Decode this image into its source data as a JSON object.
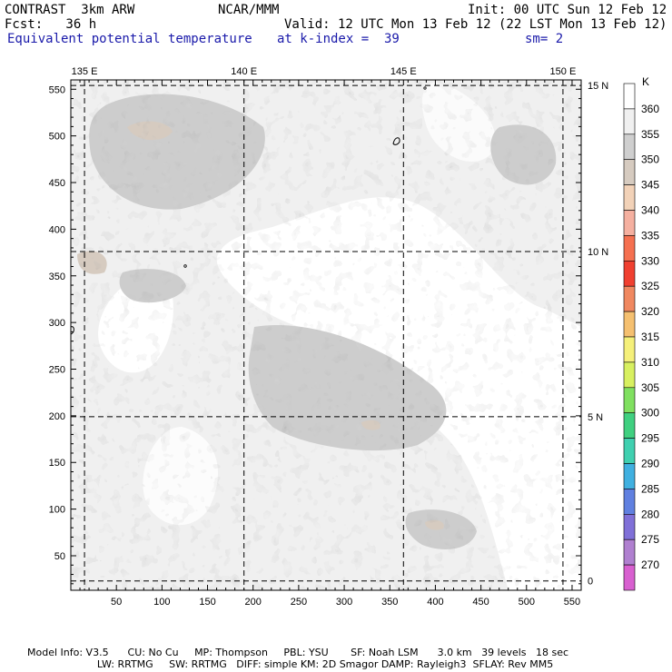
{
  "header": {
    "title": "CONTRAST  3km ARW",
    "org": "NCAR/MMM",
    "init": "Init: 00 UTC Sun 12 Feb 12",
    "fcst": "Fcst:   36 h",
    "valid": "Valid: 12 UTC Mon 13 Feb 12 (22 LST Mon 13 Feb 12)",
    "field": "Equivalent potential temperature",
    "level": "at k-index =  39",
    "smooth": "sm= 2"
  },
  "map": {
    "grid_x_range": [
      0,
      560
    ],
    "grid_y_range": [
      13,
      560
    ],
    "x_ticks": [
      "50",
      "100",
      "150",
      "200",
      "250",
      "300",
      "350",
      "400",
      "450",
      "500",
      "550"
    ],
    "y_ticks": [
      "50",
      "100",
      "150",
      "200",
      "250",
      "300",
      "350",
      "400",
      "450",
      "500",
      "550"
    ],
    "lon_labels": [
      "135 E",
      "140 E",
      "145 E",
      "150 E"
    ],
    "lat_labels": [
      "15 N",
      "10 N",
      "5 N",
      "0"
    ],
    "lon_grid_x": [
      15,
      190,
      365,
      540
    ],
    "lat_grid_y": [
      554,
      376,
      199,
      23
    ]
  },
  "colorbar": {
    "unit": "K",
    "labels": [
      "360",
      "355",
      "350",
      "345",
      "340",
      "335",
      "330",
      "325",
      "320",
      "315",
      "310",
      "305",
      "300",
      "295",
      "290",
      "285",
      "280",
      "275",
      "270"
    ],
    "colors": [
      "#ffffff",
      "#f0f0f0",
      "#cfcfcf",
      "#d6cbc0",
      "#f2d2b8",
      "#f5b0a0",
      "#f57050",
      "#f04030",
      "#f08860",
      "#f5c070",
      "#f5f07a",
      "#d8f060",
      "#80e060",
      "#40d080",
      "#40d0b0",
      "#40b0e0",
      "#6080e0",
      "#8070d8",
      "#b080d0",
      "#d860d0"
    ]
  },
  "footer": {
    "line1": "Model Info: V3.5      CU: No Cu     MP: Thompson     PBL: YSU       SF: Noah LSM      3.0 km   39 levels   18 sec",
    "line2": "                      LW: RRTMG     SW: RRTMG   DIFF: simple KM: 2D Smagor DAMP: Rayleigh3  SFLAY: Rev MM5"
  }
}
